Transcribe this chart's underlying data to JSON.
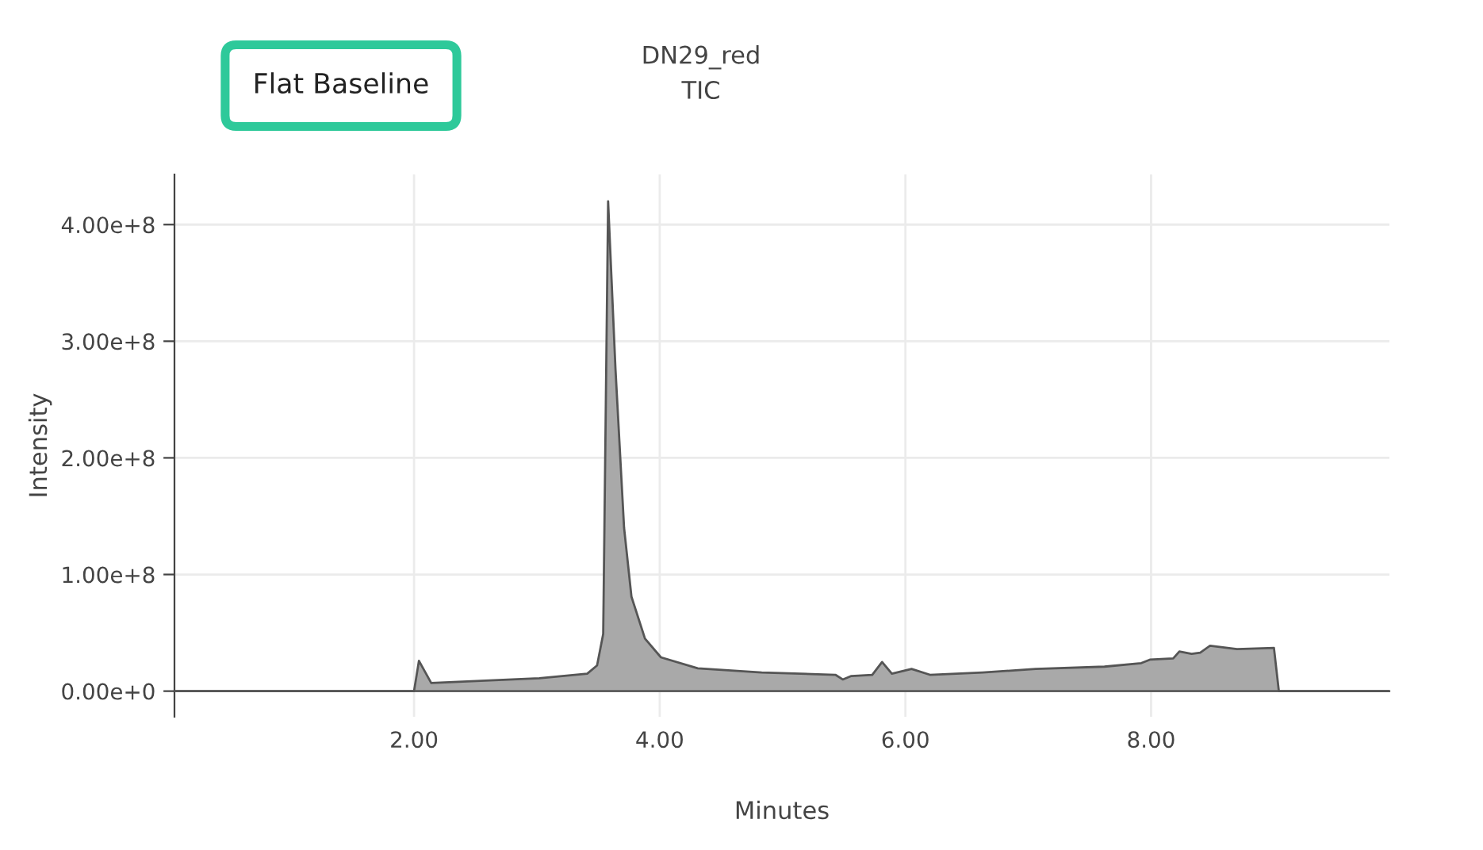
{
  "chart_data": {
    "type": "area",
    "title": "DN29_red\nTIC",
    "xlabel": "Minutes",
    "ylabel": "Intensity",
    "annotations": [
      "Flat Baseline"
    ],
    "series": [
      {
        "color": "#a9a9a9",
        "x": [
          0.05,
          1.95,
          2.0,
          2.04,
          2.14,
          3.02,
          3.41,
          3.49,
          3.54,
          3.58,
          3.64,
          3.71,
          3.77,
          3.88,
          4.01,
          4.31,
          4.83,
          5.43,
          5.49,
          5.56,
          5.73,
          5.81,
          5.89,
          6.05,
          6.2,
          6.63,
          7.06,
          7.62,
          7.92,
          7.99,
          8.18,
          8.23,
          8.33,
          8.4,
          8.48,
          8.7,
          9.0,
          9.04,
          9.94
        ],
        "values": [
          0,
          0,
          0,
          26000000,
          7000000,
          11000000,
          15000000,
          22000000,
          49000000,
          420000000,
          276000000,
          140000000,
          81000000,
          45000000,
          29000000,
          19500000,
          16000000,
          14000000,
          10000000,
          13000000,
          14000000,
          25000000,
          15000000,
          19000000,
          14000000,
          16000000,
          19000000,
          21000000,
          24000000,
          27000000,
          28000000,
          34000000,
          32000000,
          33000000,
          39000000,
          36000000,
          37000000,
          0,
          0
        ]
      }
    ],
    "xlim": [
      0.05,
      9.94
    ],
    "ylim": [
      -22000000,
      443000000
    ],
    "xticks": [
      {
        "value": 2,
        "label": "2.00"
      },
      {
        "value": 4,
        "label": "4.00"
      },
      {
        "value": 6,
        "label": "6.00"
      },
      {
        "value": 8,
        "label": "8.00"
      }
    ],
    "yticks": [
      {
        "value": 0,
        "label": "0.00e+0"
      },
      {
        "value": 100000000,
        "label": "1.00e+8"
      },
      {
        "value": 200000000,
        "label": "2.00e+8"
      },
      {
        "value": 300000000,
        "label": "3.00e+8"
      },
      {
        "value": 400000000,
        "label": "4.00e+8"
      }
    ],
    "grid": true
  }
}
